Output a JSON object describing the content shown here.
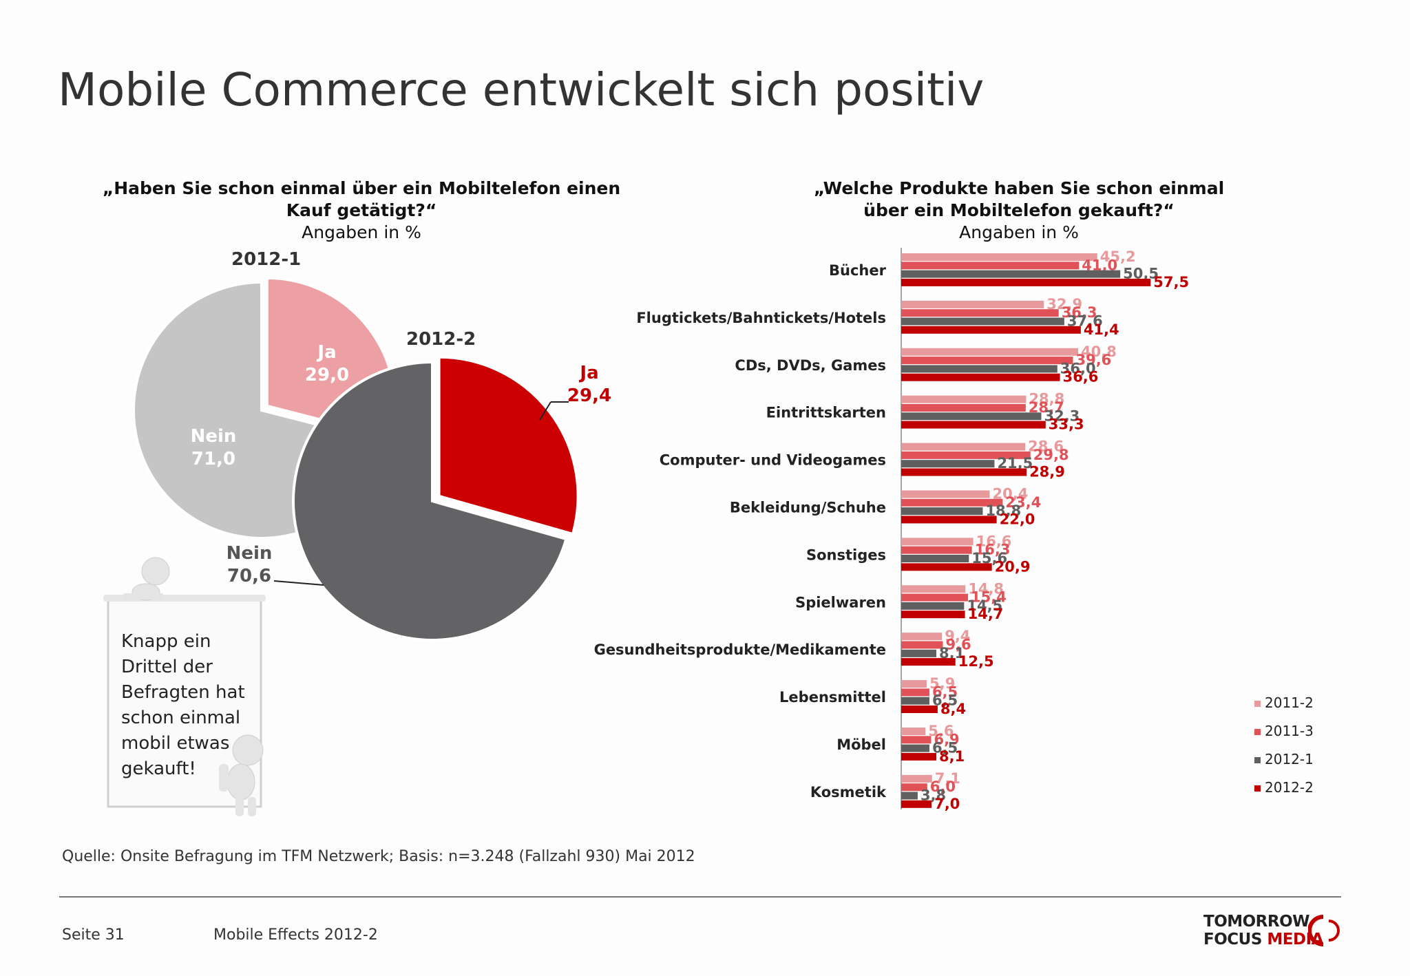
{
  "title": "Mobile Commerce entwickelt sich positiv",
  "left_question": {
    "line1": "„Haben Sie schon einmal über ein Mobiltelefon einen",
    "line2": "Kauf getätigt?“",
    "unit": "Angaben in %"
  },
  "right_question": {
    "line1": "„Welche Produkte haben Sie schon einmal",
    "line2": "über ein Mobiltelefon gekauft?“",
    "unit": "Angaben in %"
  },
  "note": [
    "Knapp ein",
    "Drittel der",
    "Befragten hat",
    "schon einmal",
    "mobil etwas",
    "gekauft!"
  ],
  "source": "Quelle: Onsite Befragung im TFM Netzwerk; Basis: n=3.248 (Fallzahl 930) Mai 2012",
  "footer": {
    "page": "Seite 31",
    "doc": "Mobile Effects 2012-2"
  },
  "logo": {
    "line1": "TOMORROW",
    "line2a": "FOCUS ",
    "line2b": "MEDIA"
  },
  "colors": {
    "s2011_2": "#e8999b",
    "s2011_3": "#e05257",
    "s2012_1": "#5f5f5f",
    "s2012_2": "#c00000",
    "pie1_ja": "#eda0a3",
    "pie1_nein": "#c5c5c5",
    "pie2_ja": "#cc0000",
    "pie2_nein": "#636265"
  },
  "chart_data": [
    {
      "type": "pie",
      "title": "2012-1",
      "labels": [
        "Ja",
        "Nein"
      ],
      "values": [
        29.0,
        71.0
      ],
      "value_labels": [
        "29,0",
        "71,0"
      ]
    },
    {
      "type": "pie",
      "title": "2012-2",
      "labels": [
        "Ja",
        "Nein"
      ],
      "values": [
        29.4,
        70.6
      ],
      "value_labels": [
        "29,4",
        "70,6"
      ]
    },
    {
      "type": "bar",
      "orientation": "horizontal",
      "categories": [
        "Bücher",
        "Flugtickets/Bahntickets/Hotels",
        "CDs, DVDs, Games",
        "Eintrittskarten",
        "Computer- und Videogames",
        "Bekleidung/Schuhe",
        "Sonstiges",
        "Spielwaren",
        "Gesundheitsprodukte/Medikamente",
        "Lebensmittel",
        "Möbel",
        "Kosmetik"
      ],
      "series": [
        {
          "name": "2011-2",
          "values": [
            45.2,
            32.9,
            40.8,
            28.8,
            28.6,
            20.4,
            16.6,
            14.8,
            9.4,
            5.9,
            5.6,
            7.1
          ],
          "labels": [
            "45,2",
            "32,9",
            "40,8",
            "28,8",
            "28,6",
            "20,4",
            "16,6",
            "14,8",
            "9,4",
            "5,9",
            "5,6",
            "7,1"
          ]
        },
        {
          "name": "2011-3",
          "values": [
            41.0,
            36.3,
            39.6,
            28.7,
            29.8,
            23.4,
            16.3,
            15.4,
            9.6,
            6.5,
            6.9,
            6.0
          ],
          "labels": [
            "41,0",
            "36,3",
            "39,6",
            "28,7",
            "29,8",
            "23,4",
            "16,3",
            "15,4",
            "9,6",
            "6,5",
            "6,9",
            "6,0"
          ]
        },
        {
          "name": "2012-1",
          "values": [
            50.5,
            37.6,
            36.0,
            32.3,
            21.5,
            18.8,
            15.6,
            14.5,
            8.1,
            6.5,
            6.5,
            3.8
          ],
          "labels": [
            "50,5",
            "37,6",
            "36,0",
            "32,3",
            "21,5",
            "18,8",
            "15,6",
            "14,5",
            "8,1",
            "6,5",
            "6,5",
            "3,8"
          ]
        },
        {
          "name": "2012-2",
          "values": [
            57.5,
            41.4,
            36.6,
            33.3,
            28.9,
            22.0,
            20.9,
            14.7,
            12.5,
            8.4,
            8.1,
            7.0
          ],
          "labels": [
            "57,5",
            "41,4",
            "36,6",
            "33,3",
            "28,9",
            "22,0",
            "20,9",
            "14,7",
            "12,5",
            "8,4",
            "8,1",
            "7,0"
          ]
        }
      ],
      "legend_position": "bottom-right"
    }
  ]
}
